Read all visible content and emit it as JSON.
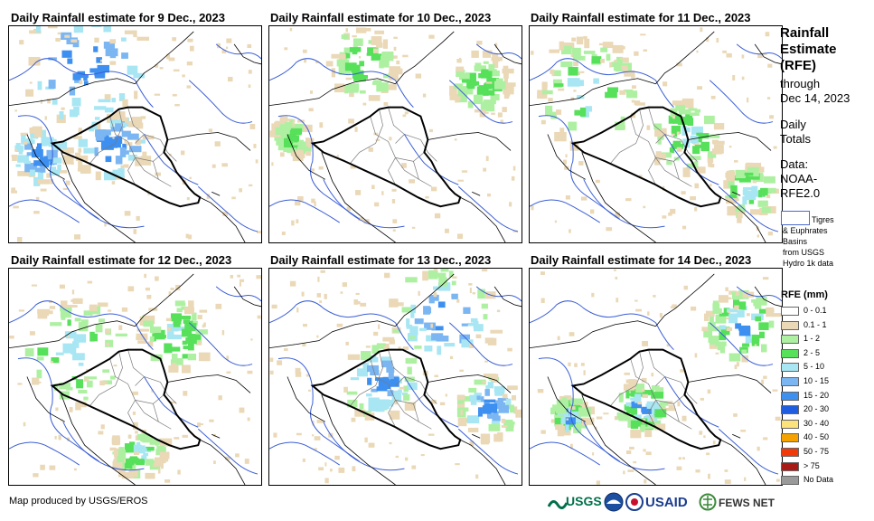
{
  "panels": [
    {
      "title": "Daily Rainfall estimate for 9 Dec., 2023"
    },
    {
      "title": "Daily Rainfall estimate for 10 Dec., 2023"
    },
    {
      "title": "Daily Rainfall estimate for 11 Dec., 2023"
    },
    {
      "title": "Daily Rainfall estimate for 12 Dec., 2023"
    },
    {
      "title": "Daily Rainfall estimate for 13 Dec., 2023"
    },
    {
      "title": "Daily Rainfall estimate for 14 Dec., 2023"
    }
  ],
  "sidebar": {
    "title_lines": [
      "Rainfall",
      "Estimate",
      "(RFE)"
    ],
    "through_lines": [
      "through",
      "Dec 14, 2023"
    ],
    "daily_lines": [
      "Daily",
      "Totals"
    ],
    "data_lines": [
      "Data:",
      "NOAA-",
      "RFE2.0"
    ],
    "basin_lines": [
      "Tigres",
      "& Euphrates",
      "Basins",
      "from USGS",
      "Hydro 1k data"
    ]
  },
  "legend": {
    "title": "RFE (mm)",
    "items": [
      {
        "label": "0 - 0.1",
        "color": "#ffffff"
      },
      {
        "label": "0.1 - 1",
        "color": "#ead8b6"
      },
      {
        "label": "1 - 2",
        "color": "#aef0a2"
      },
      {
        "label": "2 - 5",
        "color": "#57e05a"
      },
      {
        "label": "5 - 10",
        "color": "#a7e6f2"
      },
      {
        "label": "10 - 15",
        "color": "#7bb6f2"
      },
      {
        "label": "15 - 20",
        "color": "#3d8ff0"
      },
      {
        "label": "20 - 30",
        "color": "#1f5ee0"
      },
      {
        "label": "30 - 40",
        "color": "#fbe27a"
      },
      {
        "label": "40 - 50",
        "color": "#f5a200"
      },
      {
        "label": "50 - 75",
        "color": "#f03a0a"
      },
      {
        "label": "> 75",
        "color": "#a81a16"
      },
      {
        "label": "No Data",
        "color": "#9a9a9a"
      }
    ]
  },
  "footer": {
    "credit": "Map produced by USGS/EROS",
    "logos": [
      "USGS",
      "NOAA",
      "USAID",
      "FEWS NET"
    ]
  },
  "colors": {
    "basin": "#3b5fd6",
    "border": "#000000",
    "province": "#7a7a7a",
    "rain_light": "#ead8b6",
    "rain_green_light": "#aef0a2",
    "rain_green": "#57e05a",
    "rain_cyan": "#a7e6f2",
    "rain_blue_light": "#7bb6f2",
    "rain_blue": "#3d8ff0"
  }
}
